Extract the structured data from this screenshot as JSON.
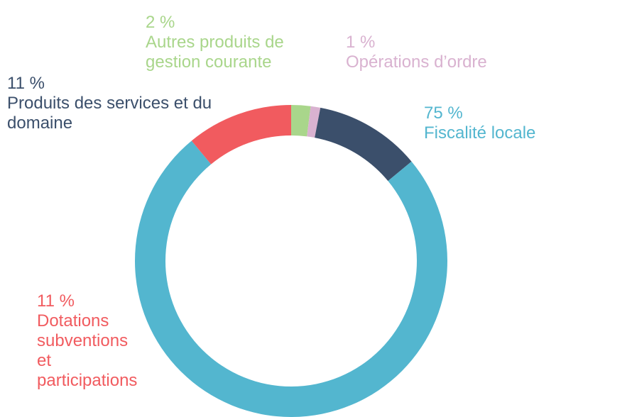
{
  "chart_data": {
    "type": "donut",
    "categories": [
      "Autres produits de gestion courante",
      "Opérations d’ordre",
      "Produits des services et du domaine",
      "Fiscalité locale",
      "Dotations subventions et participations"
    ],
    "values": [
      2,
      1,
      11,
      75,
      11
    ],
    "value_labels": [
      "2 %",
      "1 %",
      "11 %",
      "75 %",
      "11 %"
    ],
    "colors": [
      "#a9d68b",
      "#d9b2d0",
      "#3b4f6b",
      "#53b6cf",
      "#f15b5f"
    ]
  }
}
